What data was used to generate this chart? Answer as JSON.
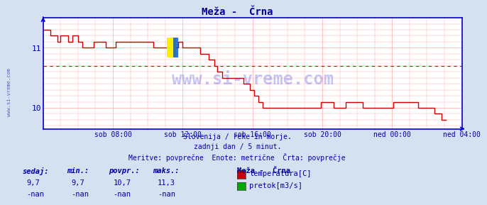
{
  "title": "Meža -  Črna",
  "title_color": "#000099",
  "bg_color": "#d5e0f0",
  "plot_bg_color": "#ffffff",
  "grid_color": "#ffaaaa",
  "axis_color": "#0000cc",
  "xlabel_color": "#0000aa",
  "text_color": "#0000aa",
  "watermark": "www.si-vreme.com",
  "watermark_color": "#0000cc",
  "subtitle1": "Slovenija / reke in morje.",
  "subtitle2": "zadnji dan / 5 minut.",
  "subtitle3": "Meritve: povprečne  Enote: metrične  Črta: povprečje",
  "legend_title": "Meža -  Črna",
  "legend_items": [
    {
      "label": "temperatura[C]",
      "color": "#cc0000"
    },
    {
      "label": "pretok[m3/s]",
      "color": "#00aa00"
    }
  ],
  "stats_headers": [
    "sedaj:",
    "min.:",
    "povpr.:",
    "maks.:"
  ],
  "stats_temp": [
    "9,7",
    "9,7",
    "10,7",
    "11,3"
  ],
  "stats_flow": [
    "-nan",
    "-nan",
    "-nan",
    "-nan"
  ],
  "yticks": [
    10,
    11
  ],
  "xtick_labels": [
    "sob 08:00",
    "sob 12:00",
    "sob 16:00",
    "sob 20:00",
    "ned 00:00",
    "ned 04:00"
  ],
  "xtick_positions": [
    48,
    96,
    144,
    192,
    240,
    288
  ],
  "avg_line_y": 10.7,
  "avg_line_color": "#cc0000",
  "line_color": "#cc0000",
  "temp_data": [
    11.3,
    11.3,
    11.3,
    11.3,
    11.3,
    11.2,
    11.2,
    11.2,
    11.2,
    11.2,
    11.1,
    11.1,
    11.2,
    11.2,
    11.2,
    11.2,
    11.2,
    11.1,
    11.1,
    11.1,
    11.2,
    11.2,
    11.2,
    11.2,
    11.1,
    11.1,
    11.1,
    11.0,
    11.0,
    11.0,
    11.0,
    11.0,
    11.0,
    11.0,
    11.0,
    11.1,
    11.1,
    11.1,
    11.1,
    11.1,
    11.1,
    11.1,
    11.1,
    11.0,
    11.0,
    11.0,
    11.0,
    11.0,
    11.0,
    11.0,
    11.1,
    11.1,
    11.1,
    11.1,
    11.1,
    11.1,
    11.1,
    11.1,
    11.1,
    11.1,
    11.1,
    11.1,
    11.1,
    11.1,
    11.1,
    11.1,
    11.1,
    11.1,
    11.1,
    11.1,
    11.1,
    11.1,
    11.1,
    11.1,
    11.1,
    11.1,
    11.0,
    11.0,
    11.0,
    11.0,
    11.0,
    11.0,
    11.0,
    11.0,
    11.0,
    11.0,
    11.0,
    11.0,
    11.0,
    11.0,
    11.0,
    11.0,
    11.0,
    11.1,
    11.1,
    11.1,
    11.0,
    11.0,
    11.0,
    11.0,
    11.0,
    11.0,
    11.0,
    11.0,
    11.0,
    11.0,
    11.0,
    11.0,
    10.9,
    10.9,
    10.9,
    10.9,
    10.9,
    10.9,
    10.8,
    10.8,
    10.8,
    10.8,
    10.7,
    10.7,
    10.6,
    10.6,
    10.6,
    10.5,
    10.5,
    10.5,
    10.5,
    10.5,
    10.5,
    10.5,
    10.5,
    10.5,
    10.5,
    10.5,
    10.5,
    10.5,
    10.5,
    10.5,
    10.4,
    10.4,
    10.4,
    10.4,
    10.3,
    10.3,
    10.3,
    10.2,
    10.2,
    10.2,
    10.1,
    10.1,
    10.1,
    10.0,
    10.0,
    10.0,
    10.0,
    10.0,
    10.0,
    10.0,
    10.0,
    10.0,
    10.0,
    10.0,
    10.0,
    10.0,
    10.0,
    10.0,
    10.0,
    10.0,
    10.0,
    10.0,
    10.0,
    10.0,
    10.0,
    10.0,
    10.0,
    10.0,
    10.0,
    10.0,
    10.0,
    10.0,
    10.0,
    10.0,
    10.0,
    10.0,
    10.0,
    10.0,
    10.0,
    10.0,
    10.0,
    10.0,
    10.0,
    10.1,
    10.1,
    10.1,
    10.1,
    10.1,
    10.1,
    10.1,
    10.1,
    10.1,
    10.0,
    10.0,
    10.0,
    10.0,
    10.0,
    10.0,
    10.0,
    10.0,
    10.1,
    10.1,
    10.1,
    10.1,
    10.1,
    10.1,
    10.1,
    10.1,
    10.1,
    10.1,
    10.1,
    10.1,
    10.0,
    10.0,
    10.0,
    10.0,
    10.0,
    10.0,
    10.0,
    10.0,
    10.0,
    10.0,
    10.0,
    10.0,
    10.0,
    10.0,
    10.0,
    10.0,
    10.0,
    10.0,
    10.0,
    10.0,
    10.0,
    10.1,
    10.1,
    10.1,
    10.1,
    10.1,
    10.1,
    10.1,
    10.1,
    10.1,
    10.1,
    10.1,
    10.1,
    10.1,
    10.1,
    10.1,
    10.1,
    10.1,
    10.0,
    10.0,
    10.0,
    10.0,
    10.0,
    10.0,
    10.0,
    10.0,
    10.0,
    10.0,
    10.0,
    9.9,
    9.9,
    9.9,
    9.9,
    9.9,
    9.8,
    9.8,
    9.8,
    9.8
  ]
}
